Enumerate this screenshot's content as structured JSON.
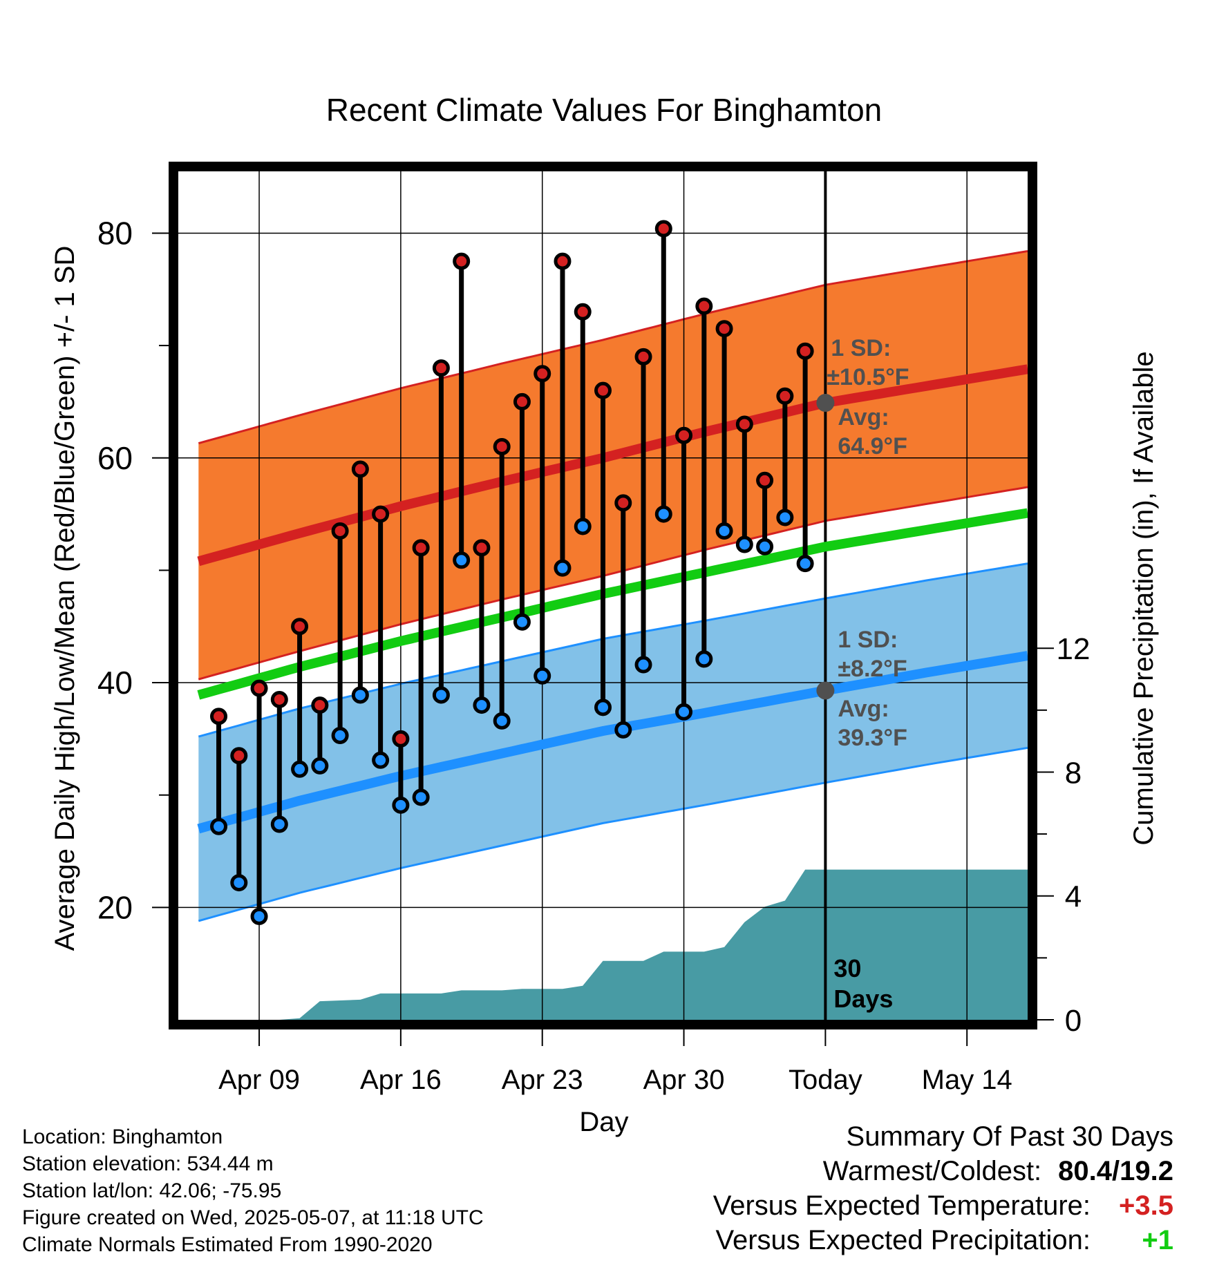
{
  "chart_data": {
    "type": "line",
    "title": "Recent Climate Values For Binghamton",
    "xlabel": "Day",
    "ylabel": "Average Daily High/Low/Mean (Red/Blue/Green) +/- 1 SD",
    "ylabel_right": "Cumulative Precipitation (in), If Available",
    "ylim": [
      10,
      85.5
    ],
    "y_ticks": [
      "20",
      "40",
      "60",
      "80"
    ],
    "y_right_lim": [
      0,
      27.4
    ],
    "y_right_ticks": [
      "0",
      "4",
      "8",
      "12"
    ],
    "x_tick_labels": [
      "Apr 09",
      "Apr 16",
      "Apr 23",
      "Apr 30",
      "Today",
      "May 14"
    ],
    "x_axis_dates": [
      "2025-04-09",
      "2025-04-16",
      "2025-04-23",
      "2025-04-30",
      "2025-05-07",
      "2025-05-14"
    ],
    "x_range": [
      "2025-04-05",
      "2025-05-17"
    ],
    "grid": true,
    "today": "2025-05-07",
    "normals": {
      "dates": [
        "2025-04-06",
        "2025-04-11",
        "2025-04-16",
        "2025-04-21",
        "2025-04-26",
        "2025-05-01",
        "2025-05-07",
        "2025-05-12",
        "2025-05-17"
      ],
      "avg_high": [
        50.8,
        53.3,
        55.7,
        57.9,
        60.0,
        62.3,
        64.9,
        66.4,
        67.9
      ],
      "avg_low": [
        27.0,
        29.5,
        31.7,
        33.7,
        35.7,
        37.3,
        39.3,
        40.9,
        42.4
      ],
      "avg_mean": [
        38.9,
        41.4,
        43.7,
        45.8,
        47.9,
        49.8,
        52.1,
        53.6,
        55.1
      ],
      "high_sd": 10.5,
      "low_sd": 8.2
    },
    "daily": {
      "dates": [
        "2025-04-07",
        "2025-04-08",
        "2025-04-09",
        "2025-04-10",
        "2025-04-11",
        "2025-04-12",
        "2025-04-13",
        "2025-04-14",
        "2025-04-15",
        "2025-04-16",
        "2025-04-17",
        "2025-04-18",
        "2025-04-19",
        "2025-04-20",
        "2025-04-21",
        "2025-04-22",
        "2025-04-23",
        "2025-04-24",
        "2025-04-25",
        "2025-04-26",
        "2025-04-27",
        "2025-04-28",
        "2025-04-29",
        "2025-04-30",
        "2025-05-01",
        "2025-05-02",
        "2025-05-03",
        "2025-05-04",
        "2025-05-05",
        "2025-05-06"
      ],
      "high": [
        37,
        33.5,
        39.5,
        38.5,
        45,
        38,
        53.5,
        59,
        55,
        35,
        52,
        68,
        77.5,
        52,
        61,
        65,
        67.5,
        77.5,
        73,
        66,
        56,
        69,
        80.4,
        62,
        73.5,
        71.5,
        63,
        58,
        65.5,
        69.5
      ],
      "low": [
        27.2,
        22.2,
        19.2,
        27.4,
        32.3,
        32.6,
        35.3,
        38.9,
        33.1,
        29.1,
        29.8,
        38.9,
        50.9,
        38,
        36.6,
        45.4,
        40.6,
        50.2,
        53.9,
        37.8,
        35.8,
        41.6,
        55,
        37.4,
        42.1,
        53.5,
        52.3,
        52.1,
        54.7,
        50.6
      ]
    },
    "precip_cumulative": {
      "dates": [
        "2025-04-05",
        "2025-04-10",
        "2025-04-11",
        "2025-04-12",
        "2025-04-14",
        "2025-04-15",
        "2025-04-18",
        "2025-04-19",
        "2025-04-21",
        "2025-04-22",
        "2025-04-24",
        "2025-04-25",
        "2025-04-26",
        "2025-04-28",
        "2025-04-29",
        "2025-05-01",
        "2025-05-02",
        "2025-05-03",
        "2025-05-04",
        "2025-05-05",
        "2025-05-06",
        "2025-05-17"
      ],
      "values": [
        0,
        0,
        0.05,
        0.6,
        0.65,
        0.85,
        0.85,
        0.95,
        0.95,
        1.0,
        1.0,
        1.1,
        1.9,
        1.9,
        2.2,
        2.2,
        2.35,
        3.15,
        3.65,
        3.85,
        4.85,
        4.85
      ]
    },
    "annotations": {
      "high_sd_label": "1 SD:",
      "high_sd_value": "±10.5°F",
      "high_avg_label": "Avg:",
      "high_avg_value": "64.9°F",
      "low_sd_label": "1 SD:",
      "low_sd_value": "±8.2°F",
      "low_avg_label": "Avg:",
      "low_avg_value": "39.3°F",
      "period_line1": "30",
      "period_line2": "Days"
    },
    "colors": {
      "high_band": "#f57a2e",
      "high_line": "#d42121",
      "low_band": "#82c1e8",
      "low_line": "#1e90ff",
      "mean_line": "#12cc12",
      "precip": "#489ba4",
      "high_dot": "#d42121",
      "low_dot": "#1e90ff",
      "annotation": "#505050"
    }
  },
  "station": {
    "location": "Location: Binghamton",
    "elevation": "Station elevation: 534.44 m",
    "latlon": "Station lat/lon: 42.06; -75.95",
    "created": "Figure created on Wed, 2025-05-07, at 11:18 UTC",
    "normals": "Climate Normals Estimated From 1990-2020"
  },
  "summary": {
    "title": "Summary Of Past 30 Days",
    "warmest_coldest_label": "Warmest/Coldest:",
    "warmest_coldest_value": "80.4/19.2",
    "temp_label": "Versus Expected Temperature:",
    "temp_value": "+3.5",
    "temp_color": "#d42121",
    "precip_label": "Versus Expected Precipitation:",
    "precip_value": "+1",
    "precip_color": "#12cc12"
  }
}
